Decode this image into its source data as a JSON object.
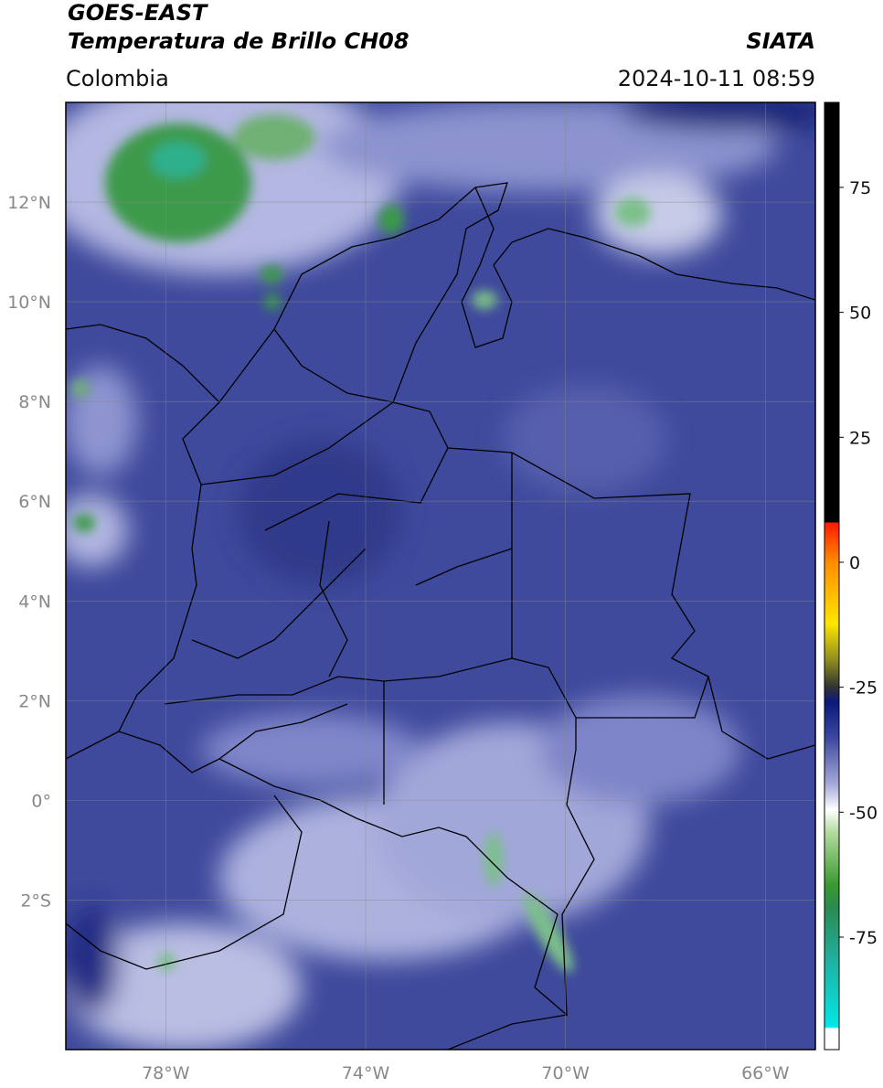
{
  "header": {
    "satellite": "GOES-EAST",
    "product": "Temperatura de Brillo CH08",
    "source": "SIATA",
    "region": "Colombia",
    "datetime": "2024-10-11 08:59"
  },
  "map": {
    "lon_range": [
      -80,
      -65
    ],
    "lat_range": [
      -5,
      14
    ],
    "lat_ticks": [
      {
        "value": 12,
        "label": "12°N"
      },
      {
        "value": 10,
        "label": "10°N"
      },
      {
        "value": 8,
        "label": "8°N"
      },
      {
        "value": 6,
        "label": "6°N"
      },
      {
        "value": 4,
        "label": "4°N"
      },
      {
        "value": 2,
        "label": "2°N"
      },
      {
        "value": 0,
        "label": "0°"
      },
      {
        "value": -2,
        "label": "2°S"
      }
    ],
    "lon_ticks": [
      {
        "value": -78,
        "label": "78°W"
      },
      {
        "value": -74,
        "label": "74°W"
      },
      {
        "value": -70,
        "label": "70°W"
      },
      {
        "value": -66,
        "label": "66°W"
      }
    ]
  },
  "colorbar": {
    "range": [
      -97.5,
      92
    ],
    "ticks": [
      75,
      50,
      25,
      0,
      -25,
      -50,
      -75
    ]
  }
}
